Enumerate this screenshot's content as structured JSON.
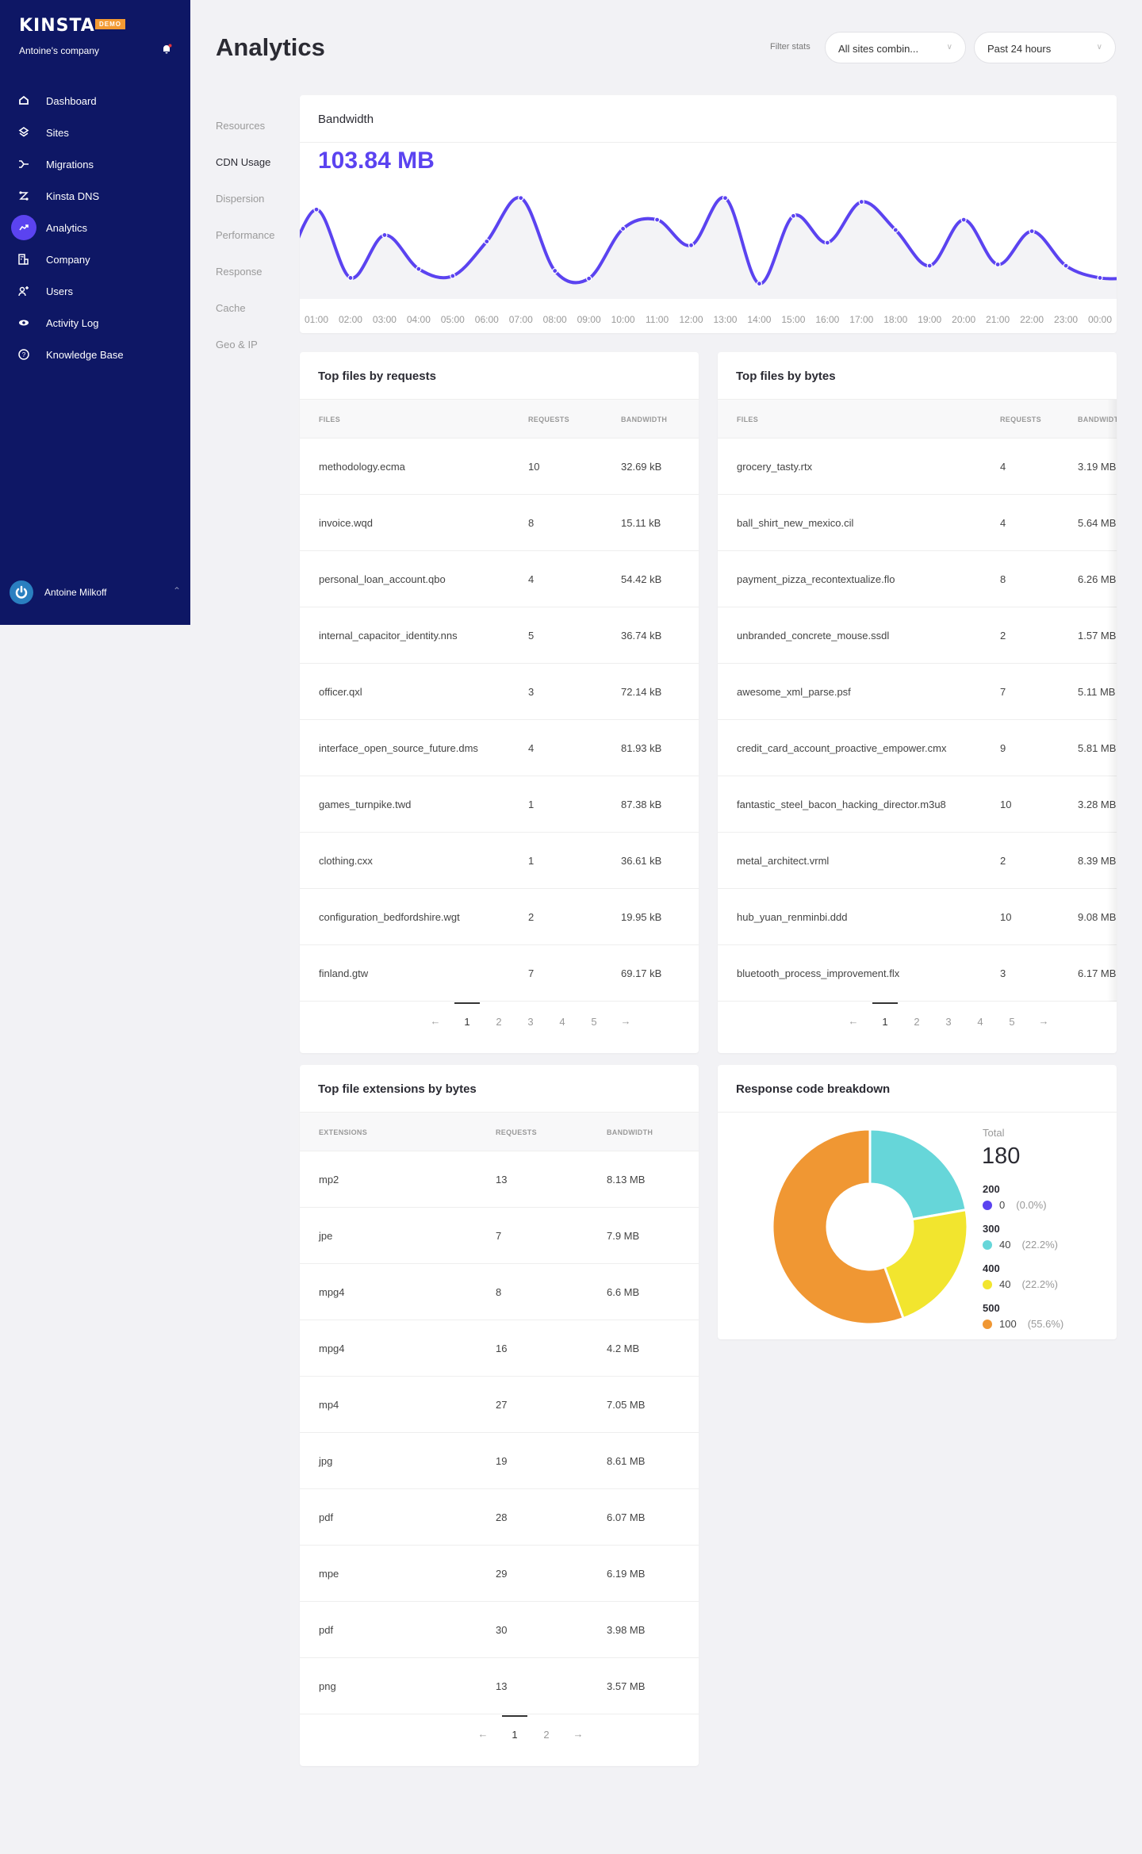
{
  "sidebar": {
    "logo": "KINSTA",
    "badge": "DEMO",
    "company": "Antoine's company",
    "items": [
      {
        "label": "Dashboard",
        "icon": "home-icon"
      },
      {
        "label": "Sites",
        "icon": "layers-icon"
      },
      {
        "label": "Migrations",
        "icon": "migrations-icon"
      },
      {
        "label": "Kinsta DNS",
        "icon": "dns-icon"
      },
      {
        "label": "Analytics",
        "icon": "analytics-icon",
        "active": true
      },
      {
        "label": "Company",
        "icon": "building-icon"
      },
      {
        "label": "Users",
        "icon": "add-user-icon"
      },
      {
        "label": "Activity Log",
        "icon": "eye-icon"
      },
      {
        "label": "Knowledge Base",
        "icon": "help-icon"
      }
    ],
    "user": "Antoine Milkoff"
  },
  "header": {
    "title": "Analytics",
    "filter_label": "Filter stats",
    "site_select": "All sites combin...",
    "period_select": "Past 24 hours"
  },
  "submenu": [
    "Resources",
    "CDN Usage",
    "Dispersion",
    "Performance",
    "Response",
    "Cache",
    "Geo & IP"
  ],
  "submenu_active": "CDN Usage",
  "bandwidth": {
    "title": "Bandwidth",
    "total": "103.84 MB"
  },
  "chart_data": [
    {
      "type": "area",
      "title": "Bandwidth",
      "x": [
        "01:00",
        "02:00",
        "03:00",
        "04:00",
        "05:00",
        "06:00",
        "07:00",
        "08:00",
        "09:00",
        "10:00",
        "11:00",
        "12:00",
        "13:00",
        "14:00",
        "15:00",
        "16:00",
        "17:00",
        "18:00",
        "19:00",
        "20:00",
        "21:00",
        "22:00",
        "23:00",
        "00:00"
      ],
      "values": [
        7.0,
        1.65,
        5.0,
        2.35,
        1.8,
        4.5,
        7.9,
        2.2,
        1.6,
        5.5,
        6.2,
        4.2,
        7.9,
        1.2,
        6.5,
        4.4,
        7.6,
        5.4,
        2.6,
        6.2,
        2.7,
        5.3,
        2.6,
        1.65
      ],
      "ylim": [
        0,
        9
      ],
      "grid": false,
      "color": "#5b43f0"
    },
    {
      "type": "pie",
      "title": "Response code breakdown",
      "total_label": "Total",
      "total": "180",
      "slices": [
        {
          "label": "200",
          "value": 0,
          "count": "0",
          "pct": "(0.0%)",
          "color": "#5b43f0"
        },
        {
          "label": "300",
          "value": 40,
          "count": "40",
          "pct": "(22.2%)",
          "color": "#66d6d9"
        },
        {
          "label": "400",
          "value": 40,
          "count": "40",
          "pct": "(22.2%)",
          "color": "#f2e52e"
        },
        {
          "label": "500",
          "value": 100,
          "count": "100",
          "pct": "(55.6%)",
          "color": "#f09733"
        }
      ]
    }
  ],
  "tables": [
    {
      "title": "Top files by requests",
      "headers": [
        "FILES",
        "REQUESTS",
        "BANDWIDTH"
      ],
      "rows": [
        [
          "methodology.ecma",
          "10",
          "32.69 kB"
        ],
        [
          "invoice.wqd",
          "8",
          "15.11 kB"
        ],
        [
          "personal_loan_account.qbo",
          "4",
          "54.42 kB"
        ],
        [
          "internal_capacitor_identity.nns",
          "5",
          "36.74 kB"
        ],
        [
          "officer.qxl",
          "3",
          "72.14 kB"
        ],
        [
          "interface_open_source_future.dms",
          "4",
          "81.93 kB"
        ],
        [
          "games_turnpike.twd",
          "1",
          "87.38 kB"
        ],
        [
          "clothing.cxx",
          "1",
          "36.61 kB"
        ],
        [
          "configuration_bedfordshire.wgt",
          "2",
          "19.95 kB"
        ],
        [
          "finland.gtw",
          "7",
          "69.17 kB"
        ]
      ],
      "pages": [
        "1",
        "2",
        "3",
        "4",
        "5"
      ],
      "current_page": "1",
      "prev": "←",
      "next": "→"
    },
    {
      "title": "Top files by bytes",
      "headers": [
        "FILES",
        "REQUESTS",
        "BANDWIDTH"
      ],
      "rows": [
        [
          "grocery_tasty.rtx",
          "4",
          "3.19 MB"
        ],
        [
          "ball_shirt_new_mexico.cil",
          "4",
          "5.64 MB"
        ],
        [
          "payment_pizza_recontextualize.flo",
          "8",
          "6.26 MB"
        ],
        [
          "unbranded_concrete_mouse.ssdl",
          "2",
          "1.57 MB"
        ],
        [
          "awesome_xml_parse.psf",
          "7",
          "5.11 MB"
        ],
        [
          "credit_card_account_proactive_empower.cmx",
          "9",
          "5.81 MB"
        ],
        [
          "fantastic_steel_bacon_hacking_director.m3u8",
          "10",
          "3.28 MB"
        ],
        [
          "metal_architect.vrml",
          "2",
          "8.39 MB"
        ],
        [
          "hub_yuan_renminbi.ddd",
          "10",
          "9.08 MB"
        ],
        [
          "bluetooth_process_improvement.flx",
          "3",
          "6.17 MB"
        ]
      ],
      "pages": [
        "1",
        "2",
        "3",
        "4",
        "5"
      ],
      "current_page": "1",
      "prev": "←",
      "next": "→"
    },
    {
      "title": "Top file extensions by bytes",
      "headers": [
        "EXTENSIONS",
        "REQUESTS",
        "BANDWIDTH"
      ],
      "rows": [
        [
          "mp2",
          "13",
          "8.13 MB"
        ],
        [
          "jpe",
          "7",
          "7.9 MB"
        ],
        [
          "mpg4",
          "8",
          "6.6 MB"
        ],
        [
          "mpg4",
          "16",
          "4.2 MB"
        ],
        [
          "mp4",
          "27",
          "7.05 MB"
        ],
        [
          "jpg",
          "19",
          "8.61 MB"
        ],
        [
          "pdf",
          "28",
          "6.07 MB"
        ],
        [
          "mpe",
          "29",
          "6.19 MB"
        ],
        [
          "pdf",
          "30",
          "3.98 MB"
        ],
        [
          "png",
          "13",
          "3.57 MB"
        ]
      ],
      "pages": [
        "1",
        "2"
      ],
      "current_page": "1",
      "prev": "←",
      "next": "→"
    }
  ],
  "colors": {
    "accent": "#5b43f0",
    "sidebar": "#0e1765",
    "badge": "#f39a33"
  }
}
